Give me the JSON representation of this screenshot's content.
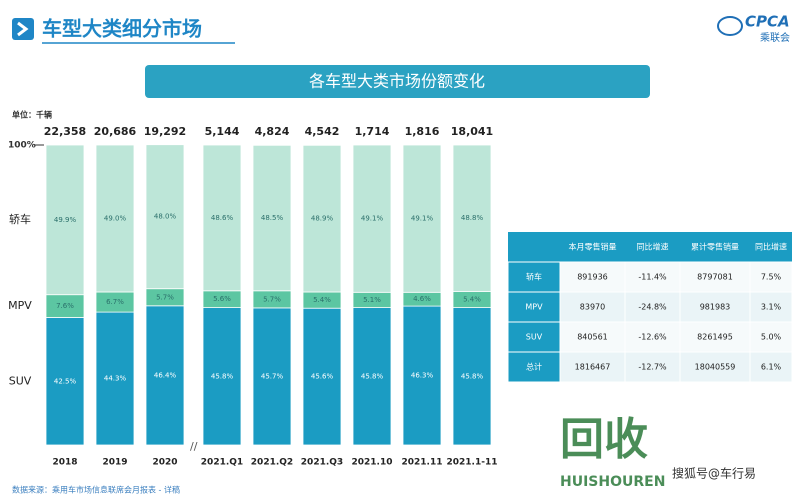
{
  "header": {
    "title": "车型大类细分市场",
    "logo": "CPCA",
    "logo_sub": "乘联会"
  },
  "chart_data": {
    "type": "bar",
    "stacked": true,
    "title": "各车型大类市场份额变化",
    "unit": "单位：千辆",
    "categories": [
      "2018",
      "2019",
      "2020",
      "2021.Q1",
      "2021.Q2",
      "2021.Q3",
      "2021.10",
      "2021.11",
      "2021.1-11"
    ],
    "totals": {
      "values": [
        22358,
        20686,
        19292,
        5144,
        4824,
        4542,
        1714,
        1816,
        18041
      ],
      "value_labels": [
        "22,358",
        "20,686",
        "19,292",
        "5,144",
        "4,824",
        "4,542",
        "1,714",
        "1,816",
        "18,041"
      ]
    },
    "series": [
      {
        "name": "SUV",
        "color": "#1b9cc3",
        "values": [
          42.5,
          44.3,
          46.4,
          45.8,
          45.7,
          45.6,
          45.8,
          46.3,
          45.8
        ],
        "value_labels": [
          "42.5%",
          "44.3%",
          "46.4%",
          "45.8%",
          "45.7%",
          "45.6%",
          "45.8%",
          "46.3%",
          "45.8%"
        ]
      },
      {
        "name": "MPV",
        "color": "#5cc6a2",
        "values": [
          7.6,
          6.7,
          5.7,
          5.6,
          5.7,
          5.4,
          5.1,
          4.6,
          5.4
        ],
        "value_labels": [
          "7.6%",
          "6.7%",
          "5.7%",
          "5.6%",
          "5.7%",
          "5.4%",
          "5.1%",
          "4.6%",
          "5.4%"
        ]
      },
      {
        "name": "轿车",
        "color": "#bde6d8",
        "values": [
          49.9,
          49.0,
          48.0,
          48.6,
          48.5,
          48.9,
          49.1,
          49.1,
          48.8
        ],
        "value_labels": [
          "49.9%",
          "49.0%",
          "48.0%",
          "48.6%",
          "48.5%",
          "48.9%",
          "49.1%",
          "49.1%",
          "48.8%"
        ]
      }
    ],
    "ylim": [
      0,
      100
    ],
    "yticks": [
      {
        "value": 100,
        "label": "100%"
      }
    ],
    "source": "数据来源：乘用车市场信息联席会月报表 - 详稿"
  },
  "table": {
    "columns": [
      "本月零售销量",
      "同比增速",
      "累计零售销量",
      "同比增速"
    ],
    "rows": [
      [
        "轿车",
        "891936",
        "-11.4%",
        "8797081",
        "7.5%"
      ],
      [
        "MPV",
        "83970",
        "-24.8%",
        "981983",
        "3.1%"
      ],
      [
        "SUV",
        "840561",
        "-12.6%",
        "8261495",
        "5.0%"
      ],
      [
        "总计",
        "1816467",
        "-12.7%",
        "18040559",
        "6.1%"
      ]
    ]
  },
  "watermark": {
    "text": "回收",
    "sub": "HUISHOUREN",
    "account": "搜狐号@车行易"
  }
}
